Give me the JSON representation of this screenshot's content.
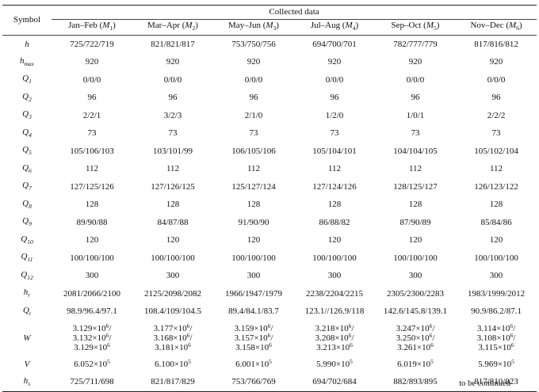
{
  "header": {
    "symbol": "Symbol",
    "collected": "Collected data",
    "columns": [
      {
        "label": "Jan–Feb (",
        "sym": "M",
        "sub": "1",
        "close": ")"
      },
      {
        "label": "Mar–Apr (",
        "sym": "M",
        "sub": "2",
        "close": ")"
      },
      {
        "label": "May–Jun (",
        "sym": "M",
        "sub": "3",
        "close": ")"
      },
      {
        "label": "Jul–Aug (",
        "sym": "M",
        "sub": "4",
        "close": ")"
      },
      {
        "label": "Sep–Oct (",
        "sym": "M",
        "sub": "5",
        "close": ")"
      },
      {
        "label": "Nov–Dec (",
        "sym": "M",
        "sub": "6",
        "close": ")"
      }
    ]
  },
  "rows": [
    {
      "sym": "h",
      "sub": "",
      "cells": [
        "725/722/719",
        "821/821/817",
        "753/750/756",
        "694/700/701",
        "782/777/779",
        "817/816/812"
      ]
    },
    {
      "sym": "h",
      "sub": "max",
      "cells": [
        "920",
        "920",
        "920",
        "920",
        "920",
        "920"
      ]
    },
    {
      "sym": "Q",
      "sub": "1",
      "cells": [
        "0/0/0",
        "0/0/0",
        "0/0/0",
        "0/0/0",
        "0/0/0",
        "0/0/0"
      ]
    },
    {
      "sym": "Q",
      "sub": "2",
      "cells": [
        "96",
        "96",
        "96",
        "96",
        "96",
        "96"
      ]
    },
    {
      "sym": "Q",
      "sub": "3",
      "cells": [
        "2/2/1",
        "3/2/3",
        "2/1/0",
        "1/2/0",
        "1/0/1",
        "2/2/2"
      ]
    },
    {
      "sym": "Q",
      "sub": "4",
      "cells": [
        "73",
        "73",
        "73",
        "73",
        "73",
        "73"
      ]
    },
    {
      "sym": "Q",
      "sub": "5",
      "cells": [
        "105/106/103",
        "103/101/99",
        "106/105/106",
        "105/104/101",
        "104/104/105",
        "105/102/104"
      ]
    },
    {
      "sym": "Q",
      "sub": "6",
      "cells": [
        "112",
        "112",
        "112",
        "112",
        "112",
        "112"
      ]
    },
    {
      "sym": "Q",
      "sub": "7",
      "cells": [
        "127/125/126",
        "127/126/125",
        "125/127/124",
        "127/124/126",
        "128/125/127",
        "126/123/122"
      ]
    },
    {
      "sym": "Q",
      "sub": "8",
      "cells": [
        "128",
        "128",
        "128",
        "128",
        "128",
        "128"
      ]
    },
    {
      "sym": "Q",
      "sub": "9",
      "cells": [
        "89/90/88",
        "84/87/88",
        "91/90/90",
        "86/88/82",
        "87/90/89",
        "85/84/86"
      ]
    },
    {
      "sym": "Q",
      "sub": "10",
      "cells": [
        "120",
        "120",
        "120",
        "120",
        "120",
        "120"
      ]
    },
    {
      "sym": "Q",
      "sub": "11",
      "cells": [
        "100/100/100",
        "100/100/100",
        "100/100/100",
        "100/100/100",
        "100/100/100",
        "100/100/100"
      ]
    },
    {
      "sym": "Q",
      "sub": "12",
      "cells": [
        "300",
        "300",
        "300",
        "300",
        "300",
        "300"
      ]
    },
    {
      "sym": "h",
      "sub": "r",
      "cells": [
        "2081/2066/2100",
        "2125/2098/2082",
        "1966/1947/1979",
        "2238/2204/2215",
        "2305/2300/2283",
        "1983/1999/2012"
      ]
    },
    {
      "sym": "Q",
      "sub": "t",
      "cells": [
        "98.9/96.4/97.1",
        "108.4/109/104.5",
        "89.4/84.1/83.7",
        "123.1//126.9/118",
        "142.6/145.8/139.1",
        "90.9/86.2/87.1"
      ]
    }
  ],
  "W": {
    "sym": "W",
    "cells": [
      [
        {
          "m": "3.129×10",
          "e": "6",
          "t": "/"
        },
        {
          "m": "3.132×10",
          "e": "6",
          "t": "/"
        },
        {
          "m": "3.129×10",
          "e": "6",
          "t": ""
        }
      ],
      [
        {
          "m": "3.177×10",
          "e": "6",
          "t": "/"
        },
        {
          "m": "3.168×10",
          "e": "6",
          "t": "/"
        },
        {
          "m": "3.181×10",
          "e": "6",
          "t": ""
        }
      ],
      [
        {
          "m": "3.159×10",
          "e": "6",
          "t": "/"
        },
        {
          "m": "3.157×10",
          "e": "6",
          "t": "/"
        },
        {
          "m": "3.158×10",
          "e": "6",
          "t": ""
        }
      ],
      [
        {
          "m": "3.218×10",
          "e": "6",
          "t": "/"
        },
        {
          "m": "3.208×10",
          "e": "6",
          "t": "/"
        },
        {
          "m": "3.213×10",
          "e": "6",
          "t": ""
        }
      ],
      [
        {
          "m": "3.247×10",
          "e": "6",
          "t": "/"
        },
        {
          "m": "3.250×10",
          "e": "6",
          "t": "/"
        },
        {
          "m": "3.261×10",
          "e": "6",
          "t": ""
        }
      ],
      [
        {
          "m": "3.114×10",
          "e": "6",
          "t": "/"
        },
        {
          "m": "3.108×10",
          "e": "6",
          "t": "/"
        },
        {
          "m": "3.115×10",
          "e": "6",
          "t": ""
        }
      ]
    ]
  },
  "V": {
    "sym": "V",
    "cells": [
      {
        "m": "6.052×10",
        "e": "5"
      },
      {
        "m": "6.100×10",
        "e": "5"
      },
      {
        "m": "6.001×10",
        "e": "5"
      },
      {
        "m": "5.990×10",
        "e": "5"
      },
      {
        "m": "6.019×10",
        "e": "5"
      },
      {
        "m": "5.969×10",
        "e": "5"
      }
    ]
  },
  "hs": {
    "sym": "h",
    "sub": "s",
    "cells": [
      "725/711/698",
      "821/817/829",
      "753/766/769",
      "694/702/684",
      "882/893/895",
      "817/810/823"
    ]
  },
  "footnote": "to be continued"
}
